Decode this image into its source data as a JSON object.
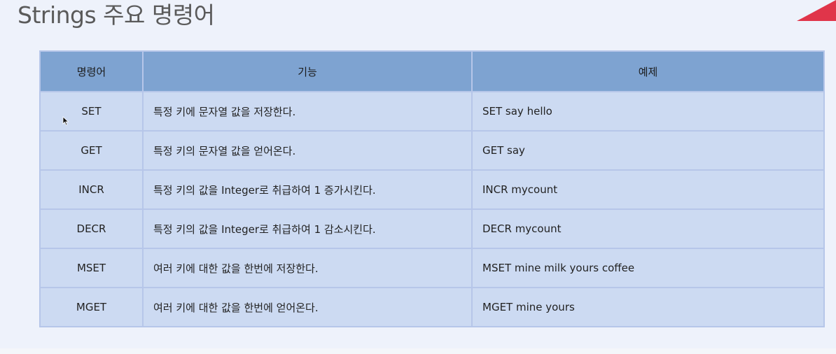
{
  "slide": {
    "title": "Strings 주요 명령어"
  },
  "table": {
    "headers": [
      "명령어",
      "기능",
      "예제"
    ],
    "rows": [
      {
        "command": "SET",
        "description": "특정 키에 문자열 값을 저장한다.",
        "example": "SET say hello"
      },
      {
        "command": "GET",
        "description": "특정 키의 문자열 값을 얻어온다.",
        "example": "GET say"
      },
      {
        "command": "INCR",
        "description": "특정 키의 값을 Integer로 취급하여 1 증가시킨다.",
        "example": "INCR mycount"
      },
      {
        "command": "DECR",
        "description": "특정 키의 값을 Integer로 취급하여 1 감소시킨다.",
        "example": "DECR mycount"
      },
      {
        "command": "MSET",
        "description": "여러 키에 대한 값을 한번에 저장한다.",
        "example": "MSET mine milk yours coffee"
      },
      {
        "command": "MGET",
        "description": "여러 키에 대한 값을 한번에 얻어온다.",
        "example": "MGET mine yours"
      }
    ]
  },
  "colors": {
    "header_bg": "#7ea3d1",
    "cell_bg": "#ccdaf2",
    "border": "#b6c6e9",
    "accent": "#e0354a"
  },
  "icons": {
    "corner": "red-triangle-icon",
    "pointer": "mouse-cursor-icon"
  }
}
